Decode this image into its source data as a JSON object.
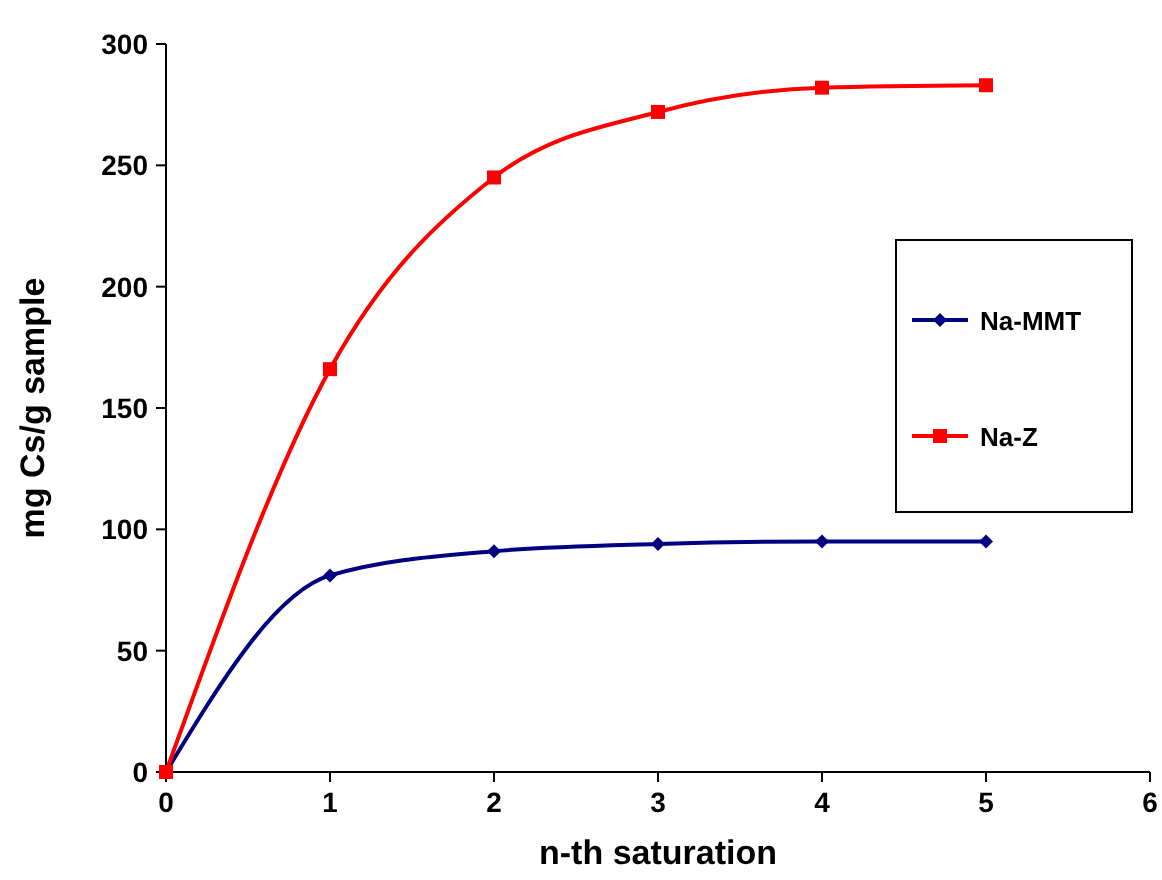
{
  "chart_data": {
    "type": "line",
    "xlabel": "n-th saturation",
    "ylabel": "mg Cs/g sample",
    "x": [
      0,
      1,
      2,
      3,
      4,
      5
    ],
    "series": [
      {
        "name": "Na-MMT",
        "color": "#000080",
        "marker": "diamond",
        "values": [
          0,
          81,
          91,
          94,
          95,
          95
        ]
      },
      {
        "name": "Na-Z",
        "color": "#ff0000",
        "marker": "square",
        "values": [
          0,
          166,
          245,
          272,
          282,
          283
        ]
      }
    ],
    "xlim": [
      0,
      6
    ],
    "xticks": [
      0,
      1,
      2,
      3,
      4,
      5,
      6
    ],
    "ylim": [
      0,
      300
    ],
    "yticks": [
      0,
      50,
      100,
      150,
      200,
      250,
      300
    ],
    "grid": false,
    "legend": "right"
  }
}
